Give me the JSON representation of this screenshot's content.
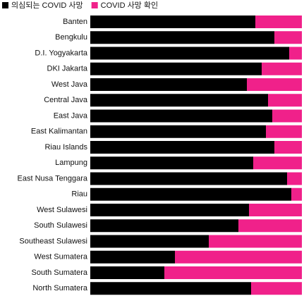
{
  "chart_data": {
    "type": "stacked-bar-100",
    "categories": [
      "Banten",
      "Bengkulu",
      "D.I. Yogyakarta",
      "DKI Jakarta",
      "West Java",
      "Central Java",
      "East Java",
      "East Kalimantan",
      "Riau Islands",
      "Lampung",
      "East Nusa Tenggara",
      "Riau",
      "West Sulawesi",
      "South Sulawesi",
      "Southeast Sulawesi",
      "West Sumatera",
      "South Sumatera",
      "North Sumatera"
    ],
    "series": [
      {
        "name": "의심되는 COVID 사망",
        "color": "#000000",
        "values": [
          78,
          87,
          94,
          81,
          74,
          84,
          86,
          83,
          87,
          77,
          93,
          95,
          75,
          70,
          56,
          40,
          35,
          76
        ]
      },
      {
        "name": "COVID 사망 확인",
        "color": "#f0218a",
        "values": [
          22,
          13,
          6,
          19,
          26,
          16,
          14,
          17,
          13,
          23,
          7,
          5,
          25,
          30,
          44,
          60,
          65,
          24
        ]
      }
    ]
  }
}
